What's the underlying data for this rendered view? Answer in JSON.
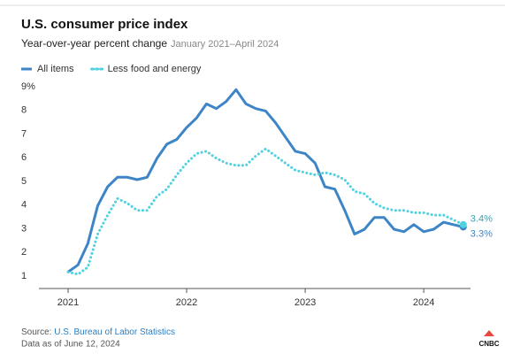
{
  "chart_data": {
    "type": "line",
    "title": "U.S. consumer price index",
    "subtitle": "Year-over-year percent change",
    "period": "January 2021–April 2024",
    "categories": [
      "2021",
      null,
      null,
      null,
      null,
      null,
      null,
      null,
      null,
      null,
      null,
      null,
      "2022",
      null,
      null,
      null,
      null,
      null,
      null,
      null,
      null,
      null,
      null,
      null,
      "2023",
      null,
      null,
      null,
      null,
      null,
      null,
      null,
      null,
      null,
      null,
      null,
      "2024",
      null,
      null,
      null,
      null
    ],
    "series": [
      {
        "name": "All items",
        "color": "#3d85c6",
        "style": "solid",
        "end_label": "3.3%",
        "values": [
          1.4,
          1.7,
          2.6,
          4.2,
          5.0,
          5.4,
          5.4,
          5.3,
          5.4,
          6.2,
          6.8,
          7.0,
          7.5,
          7.9,
          8.5,
          8.3,
          8.6,
          9.1,
          8.5,
          8.3,
          8.2,
          7.7,
          7.1,
          6.5,
          6.4,
          6.0,
          5.0,
          4.9,
          4.0,
          3.0,
          3.2,
          3.7,
          3.7,
          3.2,
          3.1,
          3.4,
          3.1,
          3.2,
          3.5,
          3.4,
          3.3
        ]
      },
      {
        "name": "Less food and energy",
        "color": "#4fd1e0",
        "style": "dotted",
        "end_label": "3.4%",
        "values": [
          1.4,
          1.3,
          1.6,
          3.0,
          3.8,
          4.5,
          4.3,
          4.0,
          4.0,
          4.6,
          4.9,
          5.5,
          6.0,
          6.4,
          6.5,
          6.2,
          6.0,
          5.9,
          5.9,
          6.3,
          6.6,
          6.3,
          6.0,
          5.7,
          5.6,
          5.5,
          5.6,
          5.5,
          5.3,
          4.8,
          4.7,
          4.3,
          4.1,
          4.0,
          4.0,
          3.9,
          3.9,
          3.8,
          3.8,
          3.6,
          3.4
        ]
      }
    ],
    "ylim": [
      0.7,
      9.3
    ],
    "yticks": [
      1,
      2,
      3,
      4,
      5,
      6,
      7,
      8,
      {
        "value": 9,
        "label": "9%"
      }
    ],
    "grid": false,
    "legend": "top-left",
    "source_prefix": "Source: ",
    "source_name": "U.S. Bureau of Labor Statistics",
    "note": "Data as of June 12, 2024",
    "logo": "CNBC"
  }
}
